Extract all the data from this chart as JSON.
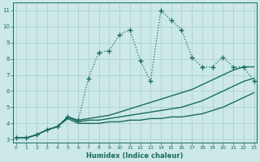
{
  "xlabel": "Humidex (Indice chaleur)",
  "bg_color": "#cce8e8",
  "grid_color": "#a8cccc",
  "line_color": "#1a6b5e",
  "xlim": [
    0,
    23
  ],
  "ylim": [
    2.8,
    11.5
  ],
  "yticks": [
    3,
    4,
    5,
    6,
    7,
    8,
    9,
    10,
    11
  ],
  "xticks": [
    0,
    1,
    2,
    3,
    4,
    5,
    6,
    7,
    8,
    9,
    10,
    11,
    12,
    13,
    14,
    15,
    16,
    17,
    18,
    19,
    20,
    21,
    22,
    23
  ],
  "series": [
    {
      "x": [
        0,
        1,
        2,
        3,
        4,
        5,
        6,
        7,
        8,
        9,
        10,
        11,
        12,
        13,
        14,
        15,
        16,
        17,
        18,
        19,
        20,
        21,
        22,
        23
      ],
      "y": [
        3.1,
        3.1,
        3.3,
        3.6,
        3.8,
        4.4,
        4.2,
        6.8,
        8.4,
        8.5,
        9.5,
        9.8,
        7.9,
        6.6,
        11.0,
        10.4,
        9.8,
        8.1,
        7.5,
        7.5,
        8.1,
        7.5,
        7.5,
        6.6
      ],
      "marker": "+",
      "linestyle": "dotted",
      "linewidth": 0.9
    },
    {
      "x": [
        0,
        1,
        2,
        3,
        4,
        5,
        6,
        7,
        8,
        9,
        10,
        11,
        12,
        13,
        14,
        15,
        16,
        17,
        18,
        19,
        20,
        21,
        22,
        23
      ],
      "y": [
        3.1,
        3.1,
        3.3,
        3.6,
        3.8,
        4.4,
        4.2,
        4.3,
        4.4,
        4.5,
        4.7,
        4.9,
        5.1,
        5.3,
        5.5,
        5.7,
        5.9,
        6.1,
        6.4,
        6.7,
        7.0,
        7.3,
        7.5,
        7.5
      ],
      "marker": null,
      "linestyle": "-",
      "linewidth": 1.0
    },
    {
      "x": [
        0,
        1,
        2,
        3,
        4,
        5,
        6,
        7,
        8,
        9,
        10,
        11,
        12,
        13,
        14,
        15,
        16,
        17,
        18,
        19,
        20,
        21,
        22,
        23
      ],
      "y": [
        3.1,
        3.1,
        3.3,
        3.6,
        3.8,
        4.4,
        4.1,
        4.2,
        4.2,
        4.3,
        4.4,
        4.5,
        4.6,
        4.7,
        4.8,
        4.9,
        5.0,
        5.2,
        5.4,
        5.7,
        6.0,
        6.3,
        6.6,
        6.8
      ],
      "marker": null,
      "linestyle": "-",
      "linewidth": 1.0
    },
    {
      "x": [
        0,
        1,
        2,
        3,
        4,
        5,
        6,
        7,
        8,
        9,
        10,
        11,
        12,
        13,
        14,
        15,
        16,
        17,
        18,
        19,
        20,
        21,
        22,
        23
      ],
      "y": [
        3.1,
        3.1,
        3.3,
        3.6,
        3.8,
        4.3,
        4.0,
        4.0,
        4.0,
        4.1,
        4.1,
        4.2,
        4.2,
        4.3,
        4.3,
        4.4,
        4.4,
        4.5,
        4.6,
        4.8,
        5.0,
        5.3,
        5.6,
        5.9
      ],
      "marker": null,
      "linestyle": "-",
      "linewidth": 1.0
    }
  ]
}
